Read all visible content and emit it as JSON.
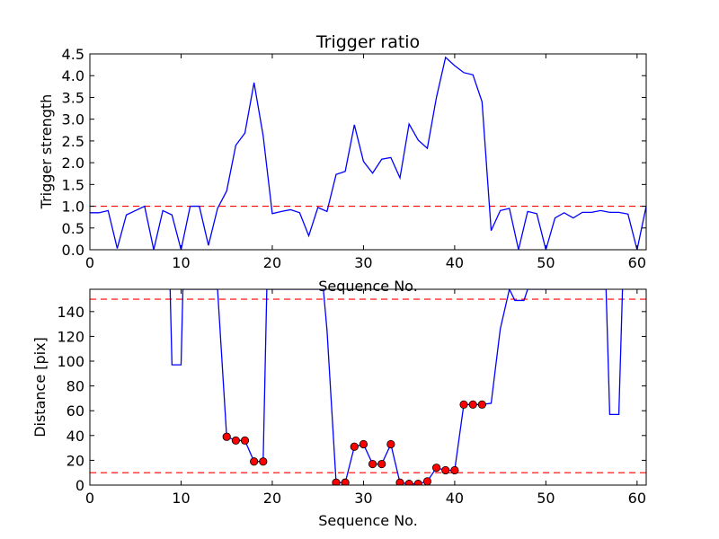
{
  "chart_data": [
    {
      "type": "line",
      "title": "Trigger ratio",
      "xlabel": "Sequence No.",
      "ylabel": "Trigger strength",
      "xlim": [
        0,
        61
      ],
      "ylim": [
        0,
        4.5
      ],
      "xticks": [
        0,
        10,
        20,
        30,
        40,
        50,
        60
      ],
      "yticks": [
        0.0,
        0.5,
        1.0,
        1.5,
        2.0,
        2.5,
        3.0,
        3.5,
        4.0,
        4.5
      ],
      "ytick_labels": [
        "0.0",
        "0.5",
        "1.0",
        "1.5",
        "2.0",
        "2.5",
        "3.0",
        "3.5",
        "4.0",
        "4.5"
      ],
      "grid": false,
      "series": [
        {
          "color": "#0000ff",
          "x": [
            0,
            1,
            2,
            3,
            4,
            5,
            6,
            7,
            8,
            9,
            10,
            11,
            12,
            13,
            14,
            15,
            16,
            17,
            18,
            19,
            20,
            21,
            22,
            23,
            24,
            25,
            26,
            27,
            28,
            29,
            30,
            31,
            32,
            33,
            34,
            35,
            36,
            37,
            38,
            39,
            40,
            41,
            42,
            43,
            44,
            45,
            46,
            47,
            48,
            49,
            50,
            51,
            52,
            53,
            54,
            55,
            56,
            57,
            58,
            59,
            60,
            61
          ],
          "values": [
            0.85,
            0.85,
            0.9,
            0.03,
            0.8,
            0.9,
            1.0,
            0.0,
            0.9,
            0.8,
            0.0,
            1.0,
            1.0,
            0.1,
            0.95,
            1.35,
            2.4,
            2.68,
            3.84,
            2.62,
            0.83,
            0.88,
            0.92,
            0.85,
            0.32,
            0.97,
            0.88,
            1.73,
            1.8,
            2.87,
            2.03,
            1.76,
            2.08,
            2.12,
            1.65,
            2.89,
            2.52,
            2.33,
            3.5,
            4.42,
            4.23,
            4.07,
            4.02,
            3.4,
            0.44,
            0.9,
            0.95,
            0.0,
            0.88,
            0.83,
            0.0,
            0.73,
            0.85,
            0.73,
            0.86,
            0.86,
            0.9,
            0.86,
            0.86,
            0.82,
            0.0,
            1.0
          ]
        }
      ],
      "reference_lines": [
        {
          "axis": "y",
          "value": 1.0,
          "color": "#ff0000",
          "style": "dashed"
        }
      ]
    },
    {
      "type": "line",
      "xlabel": "Sequence No.",
      "ylabel": "Distance [pix]",
      "xlim": [
        0,
        61
      ],
      "ylim": [
        0,
        158
      ],
      "xticks": [
        0,
        10,
        20,
        30,
        40,
        50,
        60
      ],
      "yticks": [
        0,
        20,
        40,
        60,
        80,
        100,
        120,
        140
      ],
      "grid": false,
      "series": [
        {
          "color": "#0000ff",
          "x": [
            8.8,
            9,
            10,
            10.2,
            14,
            15,
            16,
            17,
            18,
            19,
            19.4,
            25.6,
            26,
            27,
            28,
            29,
            30,
            31,
            32,
            33,
            34,
            35,
            36,
            37,
            38,
            39,
            40,
            41,
            42,
            43,
            44,
            45,
            46,
            46.6,
            47,
            47.6,
            48,
            56.6,
            57,
            58,
            58.4
          ],
          "values": [
            158,
            97,
            97,
            158,
            158,
            39,
            36,
            36,
            19,
            19,
            158,
            158,
            125,
            2,
            2,
            31,
            33,
            17,
            17,
            33,
            2,
            1,
            1,
            3,
            14,
            12,
            12,
            65,
            65,
            65,
            66,
            126,
            158,
            149,
            149,
            149,
            158,
            158,
            57,
            57,
            158
          ]
        }
      ],
      "markers": {
        "color": "#ff0000",
        "edge_color": "#000000",
        "points": [
          [
            15,
            39
          ],
          [
            16,
            36
          ],
          [
            17,
            36
          ],
          [
            18,
            19
          ],
          [
            19,
            19
          ],
          [
            27,
            2
          ],
          [
            28,
            2
          ],
          [
            29,
            31
          ],
          [
            30,
            33
          ],
          [
            31,
            17
          ],
          [
            32,
            17
          ],
          [
            33,
            33
          ],
          [
            34,
            2
          ],
          [
            35,
            1
          ],
          [
            36,
            1
          ],
          [
            37,
            3
          ],
          [
            38,
            14
          ],
          [
            39,
            12
          ],
          [
            40,
            12
          ],
          [
            41,
            65
          ],
          [
            42,
            65
          ],
          [
            43,
            65
          ]
        ]
      },
      "reference_lines": [
        {
          "axis": "y",
          "value": 150,
          "color": "#ff0000",
          "style": "dashed"
        },
        {
          "axis": "y",
          "value": 10,
          "color": "#ff0000",
          "style": "dashed"
        }
      ]
    }
  ]
}
